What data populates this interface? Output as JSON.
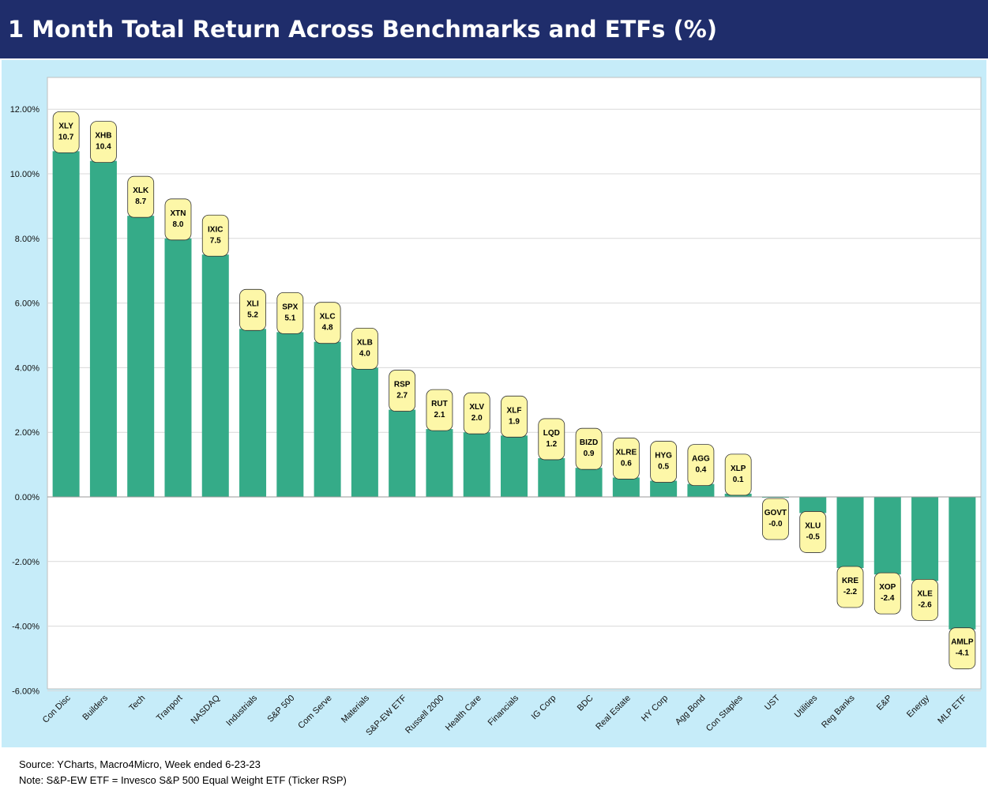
{
  "title": "1 Month Total Return Across Benchmarks and ETFs (%)",
  "footer": {
    "source": "Source: YCharts, Macro4Micro, Week ended 6-23-23",
    "note": "Note: S&P-EW ETF = Invesco S&P 500 Equal Weight ETF (Ticker RSP)"
  },
  "colors": {
    "title_bg": "#1f2d6b",
    "panel_bg": "#c6ecf9",
    "plot_bg": "#ffffff",
    "bar": "#35ab88",
    "label_bg": "#fdf7a8",
    "grid": "#d9d9d9"
  },
  "chart_data": {
    "type": "bar",
    "title": "1 Month Total Return Across Benchmarks and ETFs (%)",
    "xlabel": "",
    "ylabel": "",
    "ylim": [
      -6,
      13
    ],
    "yticks": [
      12,
      10,
      8,
      6,
      4,
      2,
      0,
      -2,
      -4,
      -6
    ],
    "ytick_labels": [
      "12.00%",
      "10.00%",
      "8.00%",
      "6.00%",
      "4.00%",
      "2.00%",
      "0.00%",
      "-2.00%",
      "-4.00%",
      "-6.00%"
    ],
    "grid": true,
    "categories": [
      "Con Disc",
      "Builders",
      "Tech",
      "Tranport",
      "NASDAQ",
      "Industrials",
      "S&P 500",
      "Com Serve",
      "Materials",
      "S&P-EW ETF",
      "Russell 2000",
      "Health Care",
      "Financials",
      "IG Corp",
      "BDC",
      "Real Estate",
      "HY Corp",
      "Agg Bond",
      "Con Staples",
      "UST",
      "Utilities",
      "Reg Banks",
      "E&P",
      "Energy",
      "MLP ETF"
    ],
    "tickers": [
      "XLY",
      "XHB",
      "XLK",
      "XTN",
      "IXIC",
      "XLI",
      "SPX",
      "XLC",
      "XLB",
      "RSP",
      "RUT",
      "XLV",
      "XLF",
      "LQD",
      "BIZD",
      "XLRE",
      "HYG",
      "AGG",
      "XLP",
      "GOVT",
      "XLU",
      "KRE",
      "XOP",
      "XLE",
      "AMLP"
    ],
    "values": [
      10.7,
      10.4,
      8.7,
      8.0,
      7.5,
      5.2,
      5.1,
      4.8,
      4.0,
      2.7,
      2.1,
      2.0,
      1.9,
      1.2,
      0.9,
      0.6,
      0.5,
      0.4,
      0.1,
      -0.0,
      -0.5,
      -2.2,
      -2.4,
      -2.6,
      -4.1
    ],
    "value_labels": [
      "10.7",
      "10.4",
      "8.7",
      "8.0",
      "7.5",
      "5.2",
      "5.1",
      "4.8",
      "4.0",
      "2.7",
      "2.1",
      "2.0",
      "1.9",
      "1.2",
      "0.9",
      "0.6",
      "0.5",
      "0.4",
      "0.1",
      "-0.0",
      "-0.5",
      "-2.2",
      "-2.4",
      "-2.6",
      "-4.1"
    ]
  }
}
